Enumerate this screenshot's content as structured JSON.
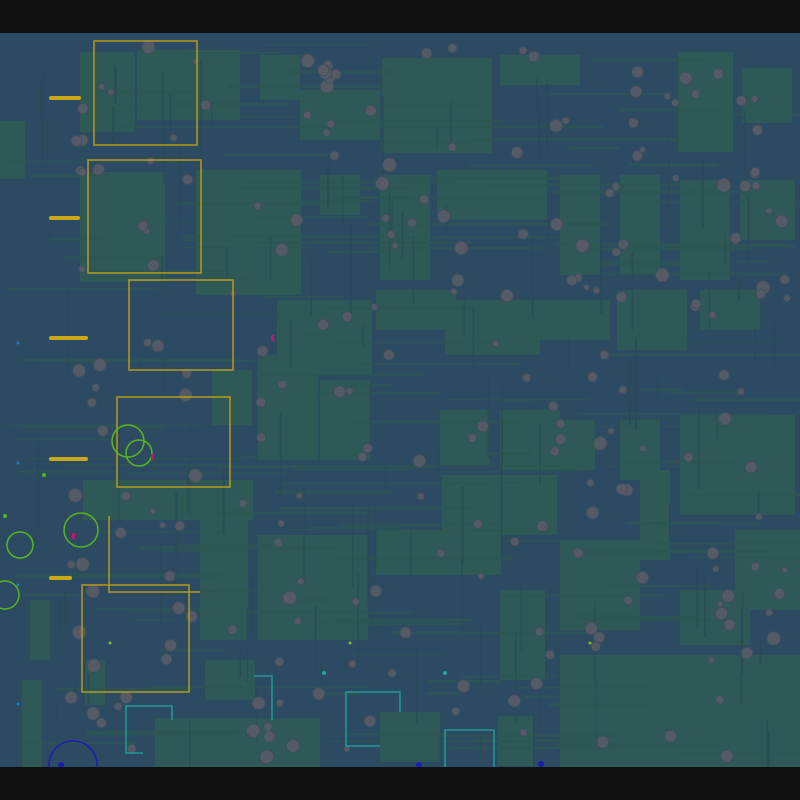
{
  "colors": {
    "frame": "#111111",
    "background": "#2c4b63",
    "copper_fill": "#2f5a55",
    "trace": "#2a5550",
    "via": "#5a5c68",
    "outline_yellow": "#b89a1c",
    "ring_green": "#5ab51e",
    "outline_cyan": "#1fa8a0",
    "ring_blue": "#1c1cb0",
    "marker_magenta": "#c0186a",
    "dot_blue": "#1a7fb8"
  }
}
